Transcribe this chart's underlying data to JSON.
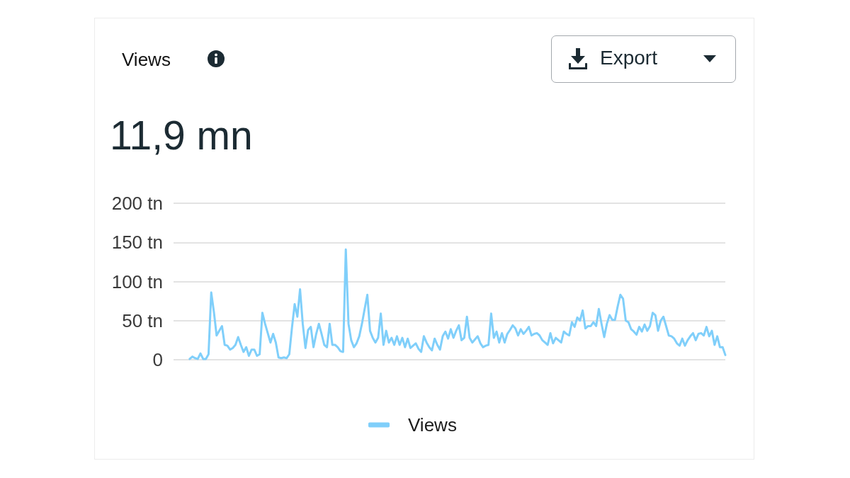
{
  "chart_data": {
    "type": "line",
    "title": "Views",
    "subtitle": "11,9 mn",
    "annotations": [
      "Export"
    ],
    "categories": [
      null,
      null,
      null,
      null,
      null,
      null,
      null,
      null,
      null,
      null,
      null,
      null,
      null,
      null,
      null,
      null,
      null,
      null,
      null,
      null,
      null,
      null,
      null,
      null,
      null,
      null,
      null,
      null,
      null,
      null,
      null,
      null,
      null,
      null,
      null,
      null,
      null,
      null,
      null,
      null,
      null,
      null,
      null,
      null,
      null,
      null,
      null,
      null,
      null,
      null,
      null,
      null,
      null,
      null,
      null,
      null,
      null,
      null,
      null,
      null,
      null,
      null,
      null,
      null,
      null,
      null,
      null,
      null,
      null,
      null,
      null,
      null,
      null,
      null,
      null,
      null,
      null,
      null,
      null,
      null,
      null,
      null,
      null,
      null,
      null,
      null,
      null,
      null,
      null,
      null,
      null,
      null,
      null,
      null,
      null,
      null,
      null,
      null,
      null,
      null,
      null,
      null,
      null,
      null,
      null,
      null,
      null,
      null,
      null,
      null,
      null,
      null,
      null,
      null,
      null,
      null,
      null,
      null,
      null,
      null,
      null,
      null,
      null,
      null,
      null,
      null,
      null,
      null,
      null,
      null,
      null,
      null,
      null,
      null,
      null,
      null,
      null,
      null,
      null,
      null,
      null,
      null,
      null,
      null,
      null,
      null,
      null,
      null,
      null,
      null,
      null,
      null,
      null,
      null,
      null,
      null,
      null,
      null,
      null,
      null,
      null,
      null,
      null,
      null,
      null,
      null,
      null,
      null,
      null,
      null,
      null,
      null,
      null,
      null,
      null,
      null,
      null,
      null,
      null,
      null,
      null,
      null,
      null,
      null,
      null,
      null,
      null,
      null,
      null,
      null,
      null,
      null,
      null,
      null,
      null,
      null,
      null,
      null,
      null,
      null,
      null,
      null,
      null,
      null,
      null,
      null
    ],
    "series": [
      {
        "name": "Views",
        "color": "#80cffa",
        "values": [
          null,
          null,
          null,
          null,
          null,
          null,
          1,
          4,
          2,
          1,
          8,
          1,
          1,
          7,
          86,
          61,
          31,
          37,
          43,
          19,
          18,
          13,
          15,
          19,
          29,
          19,
          10,
          16,
          5,
          13,
          13,
          5,
          7,
          60,
          46,
          34,
          22,
          33,
          22,
          3,
          2,
          3,
          2,
          7,
          41,
          71,
          55,
          90,
          46,
          15,
          38,
          42,
          16,
          33,
          46,
          33,
          19,
          16,
          46,
          19,
          19,
          16,
          11,
          10,
          141,
          46,
          25,
          16,
          21,
          30,
          46,
          65,
          83,
          37,
          28,
          22,
          28,
          59,
          19,
          37,
          22,
          28,
          19,
          30,
          19,
          28,
          16,
          27,
          15,
          18,
          21,
          14,
          10,
          30,
          22,
          16,
          12,
          27,
          19,
          13,
          30,
          36,
          27,
          39,
          28,
          37,
          44,
          25,
          28,
          55,
          28,
          22,
          26,
          30,
          21,
          16,
          18,
          19,
          59,
          28,
          36,
          22,
          34,
          22,
          33,
          38,
          44,
          40,
          31,
          39,
          33,
          37,
          42,
          31,
          33,
          34,
          31,
          25,
          22,
          19,
          34,
          21,
          28,
          25,
          22,
          36,
          33,
          31,
          48,
          42,
          54,
          50,
          63,
          40,
          43,
          43,
          48,
          43,
          65,
          46,
          29,
          46,
          57,
          51,
          51,
          68,
          83,
          78,
          50,
          48,
          39,
          36,
          32,
          42,
          36,
          45,
          37,
          43,
          60,
          57,
          37,
          50,
          55,
          43,
          31,
          30,
          27,
          21,
          18,
          27,
          18,
          25,
          30,
          34,
          25,
          33,
          34,
          31,
          42,
          30,
          37,
          19,
          30,
          16,
          16,
          6
        ]
      }
    ],
    "ylim": [
      0,
      200
    ],
    "yticks": [
      0,
      {
        "value": 50,
        "label": "50 tn"
      },
      {
        "value": 100,
        "label": "100 tn"
      },
      {
        "value": 150,
        "label": "150 tn"
      },
      {
        "value": 200,
        "label": "200 tn"
      }
    ],
    "grid": "y",
    "legend": "bottom",
    "marker": "none",
    "line_style": "solid",
    "tick_labels": "y"
  }
}
